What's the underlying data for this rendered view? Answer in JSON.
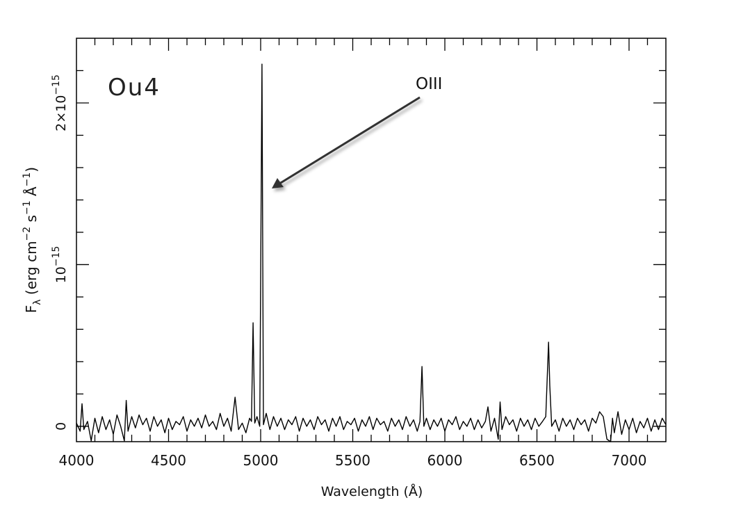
{
  "chart_data": {
    "type": "line",
    "title": "",
    "xlabel": "Wavelength (Å)",
    "ylabel": {
      "base": "F",
      "sub": "λ",
      "rest": " (erg cm",
      "e1": "−2",
      "s": " s",
      "e2": "−1",
      "a": " Å",
      "e3": "−1",
      "close": ")"
    },
    "xlim": [
      4000,
      7200
    ],
    "ylim": [
      -0.095,
      2.4
    ],
    "y_unit_scale": "1e-15",
    "x_ticks": [
      "4000",
      "4500",
      "5000",
      "5500",
      "6000",
      "6500",
      "7000"
    ],
    "x_tick_values": [
      4000,
      4500,
      5000,
      5500,
      6000,
      6500,
      7000
    ],
    "y_ticks": [
      {
        "value": 0,
        "mant": "0",
        "exp": ""
      },
      {
        "value": 1,
        "mant": "10",
        "exp": "−15"
      },
      {
        "value": 2,
        "mant": "2×10",
        "exp": "−15"
      }
    ],
    "grid": false,
    "line_color": "#000000",
    "annotations": [
      {
        "text": "Ou4",
        "type": "object-label"
      },
      {
        "text": "OIII",
        "type": "arrow-label",
        "points_to_x": 5007
      }
    ],
    "series": [
      {
        "points": [
          [
            4000,
            0.02
          ],
          [
            4020,
            -0.03
          ],
          [
            4030,
            0.14
          ],
          [
            4040,
            -0.02
          ],
          [
            4060,
            0.03
          ],
          [
            4080,
            -0.09
          ],
          [
            4100,
            0.05
          ],
          [
            4120,
            -0.04
          ],
          [
            4140,
            0.06
          ],
          [
            4160,
            -0.02
          ],
          [
            4180,
            0.04
          ],
          [
            4200,
            -0.05
          ],
          [
            4220,
            0.07
          ],
          [
            4240,
            0.0
          ],
          [
            4260,
            -0.09
          ],
          [
            4270,
            0.16
          ],
          [
            4280,
            -0.03
          ],
          [
            4300,
            0.06
          ],
          [
            4320,
            -0.01
          ],
          [
            4340,
            0.07
          ],
          [
            4360,
            0.01
          ],
          [
            4380,
            0.05
          ],
          [
            4400,
            -0.03
          ],
          [
            4420,
            0.06
          ],
          [
            4440,
            0.0
          ],
          [
            4460,
            0.04
          ],
          [
            4480,
            -0.04
          ],
          [
            4500,
            0.05
          ],
          [
            4520,
            -0.02
          ],
          [
            4540,
            0.03
          ],
          [
            4560,
            0.01
          ],
          [
            4580,
            0.06
          ],
          [
            4600,
            -0.03
          ],
          [
            4620,
            0.04
          ],
          [
            4640,
            0.0
          ],
          [
            4660,
            0.05
          ],
          [
            4680,
            -0.01
          ],
          [
            4700,
            0.07
          ],
          [
            4720,
            0.0
          ],
          [
            4740,
            0.03
          ],
          [
            4760,
            -0.02
          ],
          [
            4780,
            0.08
          ],
          [
            4800,
            0.0
          ],
          [
            4820,
            0.05
          ],
          [
            4840,
            -0.03
          ],
          [
            4861,
            0.18
          ],
          [
            4880,
            -0.02
          ],
          [
            4900,
            0.02
          ],
          [
            4920,
            -0.04
          ],
          [
            4940,
            0.05
          ],
          [
            4950,
            0.03
          ],
          [
            4959,
            0.64
          ],
          [
            4968,
            0.02
          ],
          [
            4980,
            0.06
          ],
          [
            4995,
            0.0
          ],
          [
            5007,
            2.24
          ],
          [
            5015,
            0.01
          ],
          [
            5030,
            0.08
          ],
          [
            5050,
            -0.02
          ],
          [
            5070,
            0.06
          ],
          [
            5090,
            0.0
          ],
          [
            5110,
            0.05
          ],
          [
            5130,
            -0.02
          ],
          [
            5150,
            0.04
          ],
          [
            5170,
            0.01
          ],
          [
            5190,
            0.06
          ],
          [
            5210,
            -0.03
          ],
          [
            5230,
            0.05
          ],
          [
            5250,
            0.0
          ],
          [
            5270,
            0.04
          ],
          [
            5290,
            -0.02
          ],
          [
            5310,
            0.06
          ],
          [
            5330,
            0.01
          ],
          [
            5350,
            0.04
          ],
          [
            5370,
            -0.03
          ],
          [
            5390,
            0.05
          ],
          [
            5410,
            0.0
          ],
          [
            5430,
            0.06
          ],
          [
            5450,
            -0.02
          ],
          [
            5470,
            0.03
          ],
          [
            5490,
            0.01
          ],
          [
            5510,
            0.05
          ],
          [
            5530,
            -0.03
          ],
          [
            5550,
            0.04
          ],
          [
            5570,
            0.0
          ],
          [
            5590,
            0.06
          ],
          [
            5610,
            -0.02
          ],
          [
            5630,
            0.05
          ],
          [
            5650,
            0.01
          ],
          [
            5670,
            0.03
          ],
          [
            5690,
            -0.03
          ],
          [
            5710,
            0.05
          ],
          [
            5730,
            0.0
          ],
          [
            5750,
            0.04
          ],
          [
            5770,
            -0.02
          ],
          [
            5790,
            0.06
          ],
          [
            5810,
            0.0
          ],
          [
            5830,
            0.04
          ],
          [
            5850,
            -0.03
          ],
          [
            5865,
            0.03
          ],
          [
            5876,
            0.37
          ],
          [
            5886,
            0.0
          ],
          [
            5900,
            0.05
          ],
          [
            5920,
            -0.02
          ],
          [
            5940,
            0.04
          ],
          [
            5960,
            0.0
          ],
          [
            5980,
            0.05
          ],
          [
            6000,
            -0.03
          ],
          [
            6020,
            0.04
          ],
          [
            6040,
            0.01
          ],
          [
            6060,
            0.06
          ],
          [
            6080,
            -0.02
          ],
          [
            6100,
            0.03
          ],
          [
            6120,
            0.0
          ],
          [
            6140,
            0.05
          ],
          [
            6160,
            -0.02
          ],
          [
            6180,
            0.04
          ],
          [
            6200,
            -0.01
          ],
          [
            6220,
            0.03
          ],
          [
            6234,
            0.12
          ],
          [
            6250,
            -0.03
          ],
          [
            6270,
            0.05
          ],
          [
            6290,
            -0.08
          ],
          [
            6300,
            0.15
          ],
          [
            6310,
            -0.02
          ],
          [
            6330,
            0.06
          ],
          [
            6350,
            0.01
          ],
          [
            6370,
            0.04
          ],
          [
            6390,
            -0.03
          ],
          [
            6410,
            0.05
          ],
          [
            6430,
            0.0
          ],
          [
            6450,
            0.04
          ],
          [
            6470,
            -0.02
          ],
          [
            6490,
            0.05
          ],
          [
            6510,
            0.0
          ],
          [
            6530,
            0.03
          ],
          [
            6548,
            0.06
          ],
          [
            6563,
            0.52
          ],
          [
            6570,
            0.25
          ],
          [
            6580,
            0.0
          ],
          [
            6600,
            0.04
          ],
          [
            6620,
            -0.03
          ],
          [
            6640,
            0.05
          ],
          [
            6660,
            0.0
          ],
          [
            6680,
            0.04
          ],
          [
            6700,
            -0.02
          ],
          [
            6720,
            0.05
          ],
          [
            6740,
            0.01
          ],
          [
            6760,
            0.04
          ],
          [
            6780,
            -0.03
          ],
          [
            6800,
            0.05
          ],
          [
            6820,
            0.02
          ],
          [
            6840,
            0.09
          ],
          [
            6860,
            0.06
          ],
          [
            6880,
            -0.08
          ],
          [
            6900,
            -0.1
          ],
          [
            6910,
            0.05
          ],
          [
            6920,
            -0.04
          ],
          [
            6940,
            0.09
          ],
          [
            6960,
            -0.05
          ],
          [
            6980,
            0.04
          ],
          [
            7000,
            -0.02
          ],
          [
            7020,
            0.05
          ],
          [
            7040,
            -0.04
          ],
          [
            7060,
            0.03
          ],
          [
            7080,
            -0.01
          ],
          [
            7100,
            0.05
          ],
          [
            7120,
            -0.03
          ],
          [
            7140,
            0.04
          ],
          [
            7160,
            -0.02
          ],
          [
            7180,
            0.05
          ],
          [
            7200,
            0.01
          ]
        ]
      }
    ]
  }
}
